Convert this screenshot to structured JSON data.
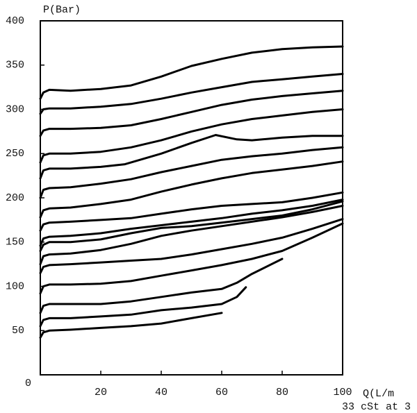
{
  "chart_data": {
    "type": "line",
    "y_label": "P(Bar)",
    "x_label": "Q(L/m",
    "note": "33 cSt at 3",
    "xlim": [
      0,
      100
    ],
    "ylim": [
      0,
      400
    ],
    "xticks": [
      20,
      40,
      60,
      80,
      100
    ],
    "yticks": [
      0,
      50,
      100,
      150,
      200,
      250,
      300,
      350,
      400
    ],
    "grid": false,
    "series": [
      {
        "color": "#000000",
        "x": [
          0,
          1,
          3,
          10,
          20,
          30,
          40,
          50,
          60,
          70,
          80,
          90,
          100
        ],
        "values": [
          312,
          319,
          322,
          321,
          323,
          327,
          337,
          349,
          357,
          364,
          368,
          370,
          371
        ]
      },
      {
        "color": "#000000",
        "x": [
          0,
          1,
          3,
          10,
          20,
          30,
          40,
          50,
          60,
          70,
          80,
          90,
          100
        ],
        "values": [
          295,
          300,
          301,
          301,
          303,
          306,
          312,
          319,
          325,
          331,
          334,
          337,
          340
        ]
      },
      {
        "color": "#000000",
        "x": [
          0,
          1,
          3,
          10,
          20,
          30,
          40,
          50,
          60,
          70,
          80,
          90,
          100
        ],
        "values": [
          270,
          276,
          278,
          278,
          279,
          282,
          289,
          297,
          305,
          311,
          315,
          318,
          321
        ]
      },
      {
        "color": "#000000",
        "x": [
          0,
          1,
          3,
          10,
          20,
          30,
          40,
          50,
          60,
          70,
          80,
          90,
          100
        ],
        "values": [
          240,
          248,
          250,
          250,
          252,
          257,
          265,
          275,
          283,
          289,
          293,
          297,
          300
        ]
      },
      {
        "color": "#000000",
        "x": [
          0,
          1,
          3,
          10,
          20,
          28,
          40,
          50,
          58,
          65,
          70,
          80,
          90,
          100
        ],
        "values": [
          222,
          231,
          233,
          233,
          235,
          238,
          250,
          262,
          271,
          266,
          265,
          268,
          270,
          270
        ]
      },
      {
        "color": "#000000",
        "x": [
          0,
          1,
          3,
          10,
          20,
          30,
          40,
          50,
          60,
          70,
          80,
          90,
          100
        ],
        "values": [
          200,
          209,
          211,
          212,
          216,
          221,
          229,
          236,
          243,
          247,
          250,
          254,
          257
        ]
      },
      {
        "color": "#000000",
        "x": [
          0,
          1,
          3,
          10,
          20,
          30,
          40,
          50,
          60,
          70,
          80,
          90,
          100
        ],
        "values": [
          178,
          186,
          188,
          189,
          193,
          198,
          207,
          215,
          222,
          228,
          232,
          236,
          241
        ]
      },
      {
        "color": "#000000",
        "x": [
          0,
          1,
          3,
          10,
          20,
          30,
          40,
          50,
          60,
          70,
          80,
          90,
          100
        ],
        "values": [
          163,
          170,
          172,
          173,
          175,
          177,
          182,
          187,
          191,
          193,
          195,
          200,
          206
        ]
      },
      {
        "color": "#000000",
        "x": [
          0,
          1,
          3,
          10,
          20,
          30,
          40,
          50,
          60,
          70,
          80,
          90,
          100
        ],
        "values": [
          146,
          154,
          156,
          157,
          160,
          165,
          169,
          173,
          177,
          182,
          186,
          191,
          198
        ]
      },
      {
        "color": "#000000",
        "x": [
          0,
          1,
          3,
          10,
          20,
          30,
          40,
          50,
          60,
          70,
          80,
          90,
          100
        ],
        "values": [
          140,
          147,
          150,
          150,
          153,
          160,
          166,
          168,
          172,
          176,
          180,
          187,
          196
        ]
      },
      {
        "color": "#000000",
        "x": [
          0,
          1,
          3,
          10,
          20,
          30,
          40,
          50,
          60,
          70,
          80,
          90,
          100
        ],
        "values": [
          125,
          134,
          136,
          137,
          141,
          148,
          157,
          163,
          168,
          173,
          178,
          184,
          191
        ]
      },
      {
        "color": "#000000",
        "x": [
          0,
          1,
          3,
          10,
          20,
          30,
          40,
          50,
          60,
          70,
          80,
          90,
          100
        ],
        "values": [
          115,
          122,
          124,
          125,
          127,
          129,
          131,
          136,
          142,
          148,
          155,
          165,
          176
        ]
      },
      {
        "color": "#000000",
        "x": [
          0,
          1,
          3,
          10,
          20,
          30,
          40,
          50,
          60,
          70,
          80,
          90,
          100
        ],
        "values": [
          92,
          100,
          102,
          102,
          103,
          106,
          112,
          118,
          124,
          131,
          140,
          155,
          171
        ]
      },
      {
        "color": "#000000",
        "x": [
          0,
          1,
          3,
          10,
          20,
          30,
          40,
          50,
          60,
          65,
          70,
          80
        ],
        "values": [
          70,
          78,
          80,
          80,
          80,
          83,
          88,
          93,
          97,
          104,
          114,
          131
        ]
      },
      {
        "color": "#000000",
        "x": [
          0,
          1,
          3,
          10,
          20,
          30,
          40,
          50,
          60,
          65,
          68
        ],
        "values": [
          55,
          62,
          64,
          64,
          66,
          68,
          73,
          76,
          80,
          88,
          99
        ]
      },
      {
        "color": "#000000",
        "x": [
          0,
          1,
          3,
          10,
          20,
          30,
          40,
          50,
          60
        ],
        "values": [
          42,
          48,
          50,
          51,
          53,
          55,
          58,
          64,
          70
        ]
      }
    ]
  }
}
